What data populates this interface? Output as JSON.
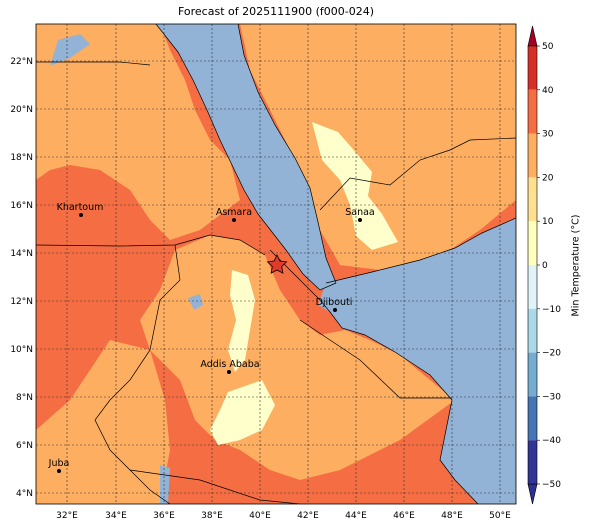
{
  "title": "Forecast of 2025111900 (f000-024)",
  "colorbar": {
    "label": "Min Temperature (°C)",
    "ticks": [
      "50",
      "40",
      "30",
      "20",
      "10",
      "0",
      "−10",
      "−20",
      "−30",
      "−40",
      "−50"
    ],
    "colors": [
      "#a50026",
      "#d73027",
      "#f46d43",
      "#fdae61",
      "#fee090",
      "#ffffbf",
      "#e0f3f8",
      "#abd9e9",
      "#74add1",
      "#4575b4",
      "#313695",
      "#2b2f8f"
    ]
  },
  "lat_labels": [
    "22°N",
    "20°N",
    "18°N",
    "16°N",
    "14°N",
    "12°N",
    "10°N",
    "8°N",
    "6°N",
    "4°N"
  ],
  "lon_labels": [
    "32°E",
    "34°E",
    "36°E",
    "38°E",
    "40°E",
    "42°E",
    "44°E",
    "46°E",
    "48°E",
    "50°E"
  ],
  "cities": [
    {
      "name": "Khartoum"
    },
    {
      "name": "Asmara"
    },
    {
      "name": "Sanaa"
    },
    {
      "name": "Djibouti"
    },
    {
      "name": "Addis Ababa"
    },
    {
      "name": "Juba"
    }
  ],
  "marker": {
    "type": "star"
  },
  "fill_colors": {
    "sea": "#92b3d6",
    "warm": "#fdae61",
    "hot": "#f46d43",
    "mild": "#fee090",
    "cool": "#ffffcc"
  }
}
